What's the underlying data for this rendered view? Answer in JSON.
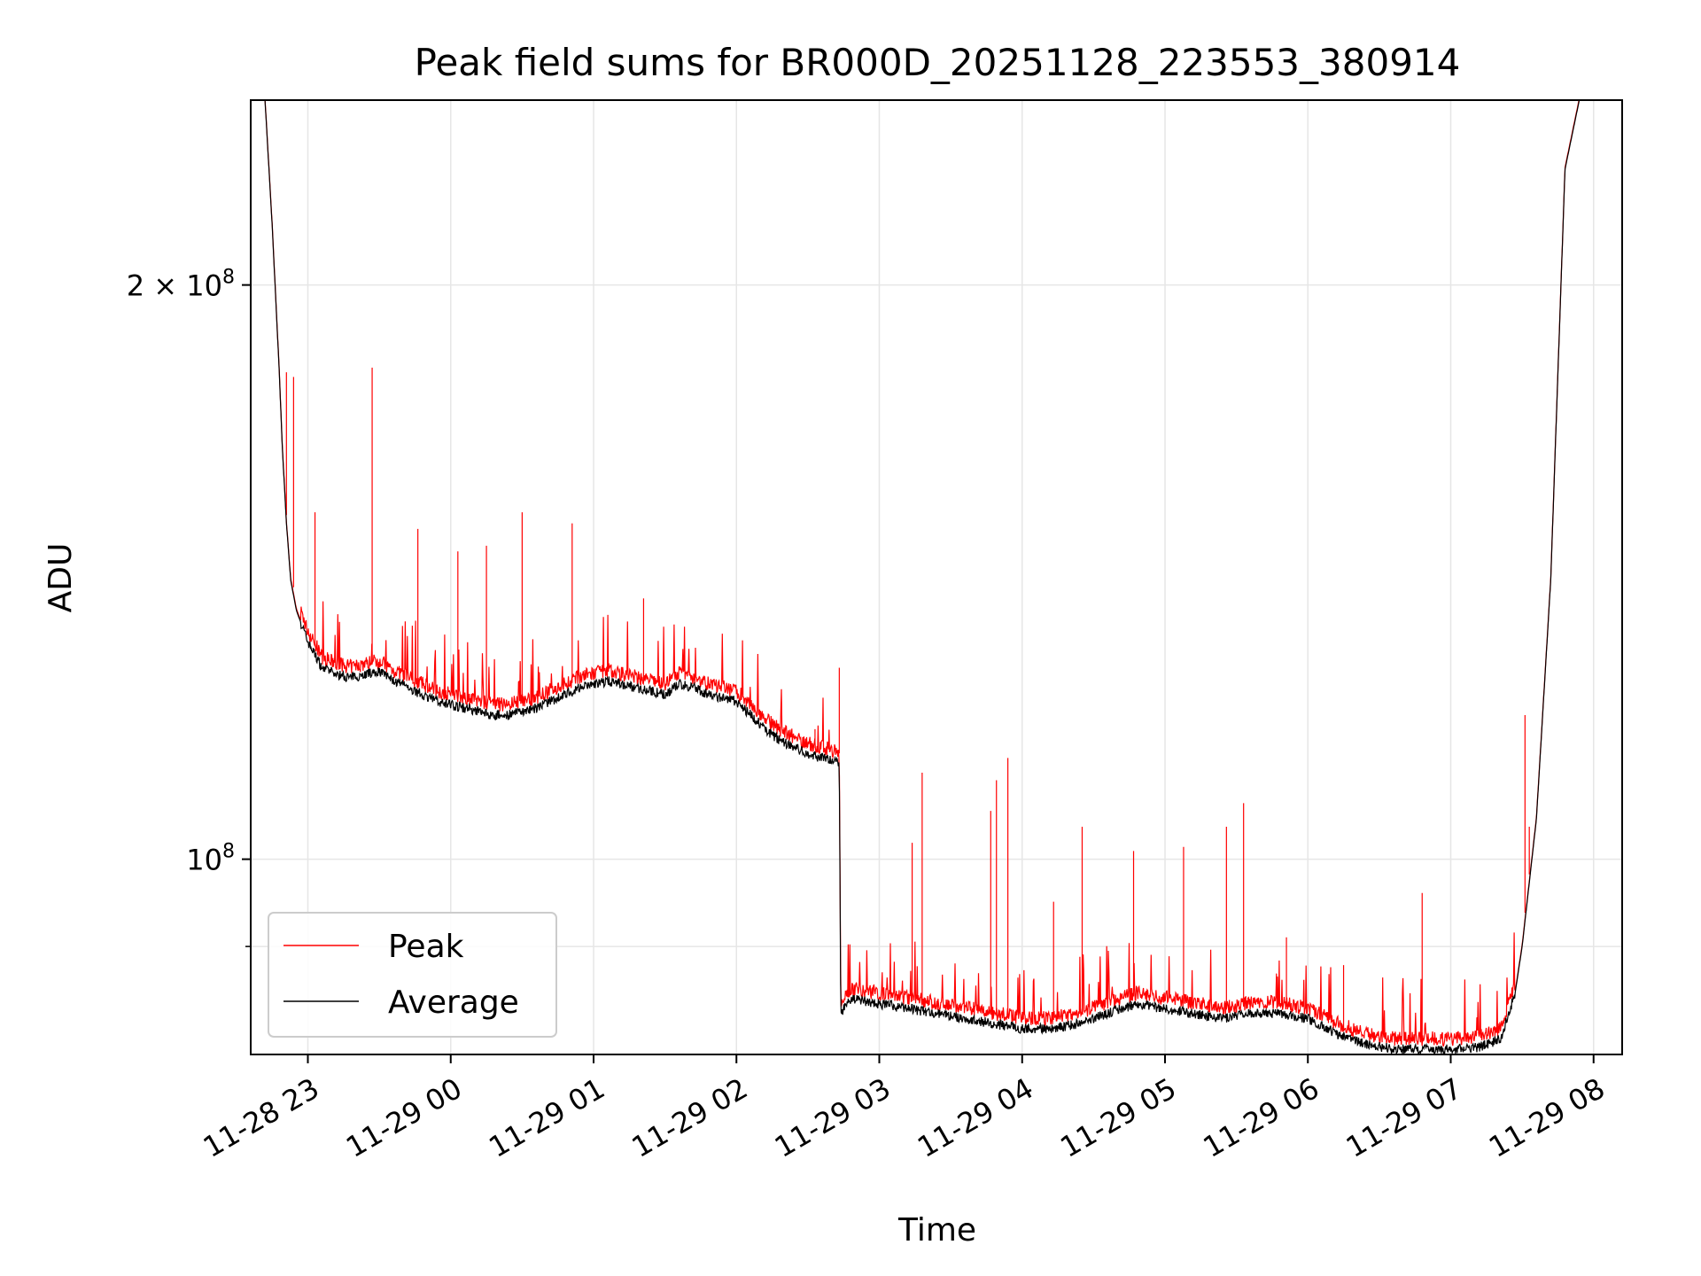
{
  "chart_data": {
    "type": "line",
    "title": "Peak field sums for BR000D_20251128_223553_380914",
    "xlabel": "Time",
    "ylabel": "ADU",
    "yscale": "log",
    "ylim": [
      79000000,
      250000000
    ],
    "xlim_hours": [
      22.6,
      32.2
    ],
    "grid": true,
    "legend": {
      "location": "lower-left",
      "entries": [
        "Peak",
        "Average"
      ]
    },
    "x_ticks": [
      {
        "label": "11-28 23",
        "hour": 23
      },
      {
        "label": "11-29 00",
        "hour": 24
      },
      {
        "label": "11-29 01",
        "hour": 25
      },
      {
        "label": "11-29 02",
        "hour": 26
      },
      {
        "label": "11-29 03",
        "hour": 27
      },
      {
        "label": "11-29 04",
        "hour": 28
      },
      {
        "label": "11-29 05",
        "hour": 29
      },
      {
        "label": "11-29 06",
        "hour": 30
      },
      {
        "label": "11-29 07",
        "hour": 31
      },
      {
        "label": "11-29 08",
        "hour": 32
      }
    ],
    "y_major_ticks": [
      {
        "value": 200000000,
        "base": "2",
        "exp": "8",
        "mult": true
      },
      {
        "value": 100000000,
        "base": "10",
        "exp": "8",
        "mult": false
      }
    ],
    "y_minor_ticks": [
      90000000
    ],
    "series": [
      {
        "name": "Average",
        "color": "#000000",
        "x": [
          22.7,
          22.75,
          22.8,
          22.82,
          22.85,
          22.88,
          22.92,
          23.0,
          23.05,
          23.1,
          23.2,
          23.3,
          23.4,
          23.5,
          23.6,
          23.7,
          23.8,
          23.9,
          24.0,
          24.1,
          24.2,
          24.3,
          24.4,
          24.5,
          24.6,
          24.7,
          24.8,
          24.9,
          25.0,
          25.1,
          25.2,
          25.3,
          25.4,
          25.5,
          25.6,
          25.7,
          25.8,
          25.9,
          26.0,
          26.1,
          26.2,
          26.3,
          26.4,
          26.5,
          26.6,
          26.7,
          26.72,
          26.73,
          26.8,
          27.0,
          27.2,
          27.4,
          27.6,
          27.8,
          28.0,
          28.2,
          28.4,
          28.6,
          28.8,
          29.0,
          29.2,
          29.4,
          29.6,
          29.8,
          30.0,
          30.2,
          30.4,
          30.6,
          30.8,
          31.0,
          31.2,
          31.35,
          31.45,
          31.5,
          31.6,
          31.7,
          31.8,
          31.9
        ],
        "values": [
          250000000,
          215000000,
          180000000,
          165000000,
          150000000,
          140000000,
          135000000,
          130000000,
          128000000,
          126000000,
          125000000,
          124500000,
          125000000,
          125500000,
          124000000,
          123000000,
          122000000,
          121000000,
          120500000,
          120000000,
          119500000,
          119000000,
          119000000,
          119500000,
          120000000,
          121000000,
          122000000,
          123000000,
          123500000,
          124000000,
          123500000,
          123000000,
          122500000,
          122000000,
          123500000,
          123000000,
          122000000,
          121500000,
          121000000,
          119000000,
          117000000,
          115500000,
          114500000,
          113500000,
          113000000,
          112500000,
          112500000,
          83000000,
          84500000,
          84000000,
          83500000,
          83000000,
          82500000,
          82000000,
          81500000,
          81500000,
          82000000,
          83000000,
          84000000,
          83500000,
          83000000,
          82500000,
          83000000,
          83000000,
          82500000,
          81000000,
          80000000,
          79500000,
          79500000,
          79500000,
          79700000,
          80500000,
          85000000,
          90000000,
          105000000,
          140000000,
          230000000,
          250000000
        ]
      },
      {
        "name": "Peak",
        "color": "#ff0000",
        "spikes": [
          {
            "hour": 22.85,
            "value": 180000000
          },
          {
            "hour": 22.9,
            "value": 179000000
          },
          {
            "hour": 23.05,
            "value": 152000000
          },
          {
            "hour": 23.45,
            "value": 181000000
          },
          {
            "hour": 23.77,
            "value": 149000000
          },
          {
            "hour": 24.05,
            "value": 145000000
          },
          {
            "hour": 24.25,
            "value": 146000000
          },
          {
            "hour": 24.5,
            "value": 152000000
          },
          {
            "hour": 24.85,
            "value": 150000000
          },
          {
            "hour": 25.35,
            "value": 137000000
          },
          {
            "hour": 26.55,
            "value": 117000000
          },
          {
            "hour": 26.72,
            "value": 126000000
          },
          {
            "hour": 27.23,
            "value": 102000000
          },
          {
            "hour": 27.3,
            "value": 111000000
          },
          {
            "hour": 27.78,
            "value": 106000000
          },
          {
            "hour": 27.82,
            "value": 110000000
          },
          {
            "hour": 27.9,
            "value": 113000000
          },
          {
            "hour": 28.22,
            "value": 95000000
          },
          {
            "hour": 28.42,
            "value": 104000000
          },
          {
            "hour": 28.78,
            "value": 101000000
          },
          {
            "hour": 29.13,
            "value": 101500000
          },
          {
            "hour": 29.43,
            "value": 104000000
          },
          {
            "hour": 29.55,
            "value": 107000000
          },
          {
            "hour": 29.85,
            "value": 91000000
          },
          {
            "hour": 30.25,
            "value": 88000000
          },
          {
            "hour": 30.8,
            "value": 96000000
          },
          {
            "hour": 31.52,
            "value": 119000000
          },
          {
            "hour": 31.55,
            "value": 104000000
          }
        ]
      }
    ]
  }
}
